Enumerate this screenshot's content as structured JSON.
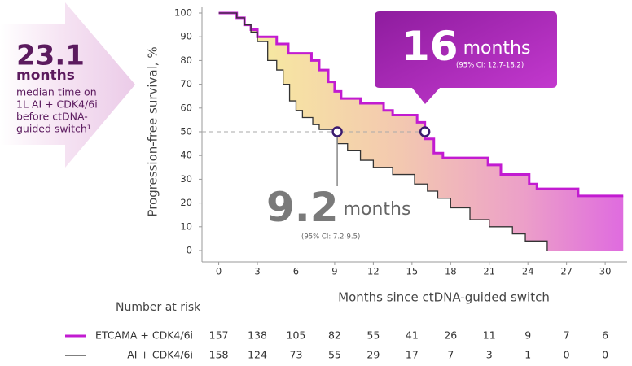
{
  "chart_data": {
    "type": "line",
    "step": true,
    "x_label": "Months since ctDNA-guided switch",
    "y_label": "Progression-free survival, %",
    "xlim": [
      -1.3,
      31.7
    ],
    "xticks": [
      0,
      3,
      6,
      9,
      12,
      15,
      18,
      21,
      24,
      27,
      30
    ],
    "ylim": [
      0,
      100
    ],
    "yticks": [
      0,
      10,
      20,
      30,
      40,
      50,
      60,
      70,
      80,
      90,
      100
    ],
    "series": [
      {
        "name": "ETCAMA + CDK4/6i",
        "color": "#c21bd1",
        "x": [
          0,
          1.4,
          2.0,
          2.5,
          3.0,
          4.5,
          5.4,
          7.2,
          7.8,
          8.5,
          9.0,
          9.5,
          11.0,
          12.8,
          13.5,
          15.4,
          16.0,
          16.7,
          17.4,
          20.9,
          21.9,
          24.1,
          24.7,
          27.9,
          31.4
        ],
        "values": [
          100,
          98,
          95,
          93,
          90,
          87,
          83,
          80,
          76,
          71,
          67,
          64,
          62,
          59,
          57,
          54,
          47,
          41,
          39,
          36,
          32,
          28,
          26,
          23,
          23
        ]
      },
      {
        "name": "AI + CDK4/6i",
        "color": "#333333",
        "x": [
          0,
          1.4,
          2.0,
          2.5,
          3.0,
          3.8,
          4.5,
          5.0,
          5.5,
          6.0,
          6.5,
          7.3,
          7.8,
          9.2,
          10.0,
          11.0,
          12.0,
          13.5,
          15.2,
          16.2,
          17.0,
          18.0,
          19.5,
          21.0,
          22.8,
          23.8,
          25.5
        ],
        "values": [
          100,
          98,
          95,
          92,
          88,
          80,
          76,
          70,
          63,
          59,
          56,
          53,
          51,
          45,
          42,
          38,
          35,
          32,
          28,
          25,
          22,
          18,
          13,
          10,
          7,
          4,
          0
        ]
      }
    ],
    "reference_y": 50,
    "medians": [
      {
        "value": 9.2,
        "unit": "months",
        "ci": "(95% CI: 7.2-9.5)"
      },
      {
        "value": 16,
        "unit": "months",
        "ci": "(95% CI: 12.7-18.2)"
      }
    ],
    "prior": {
      "value": 23.1,
      "unit": "months",
      "lines": [
        "median time on",
        "1L AI + CDK4/6i",
        "before ctDNA-",
        "guided switch¹"
      ]
    },
    "risk_table": {
      "title": "Number at risk",
      "rows": [
        {
          "name": "ETCAMA + CDK4/6i",
          "values": [
            157,
            138,
            105,
            82,
            55,
            41,
            26,
            11,
            9,
            7,
            6
          ]
        },
        {
          "name": "AI + CDK4/6i",
          "values": [
            158,
            124,
            73,
            55,
            29,
            17,
            7,
            3,
            1,
            0,
            0
          ]
        }
      ]
    }
  }
}
